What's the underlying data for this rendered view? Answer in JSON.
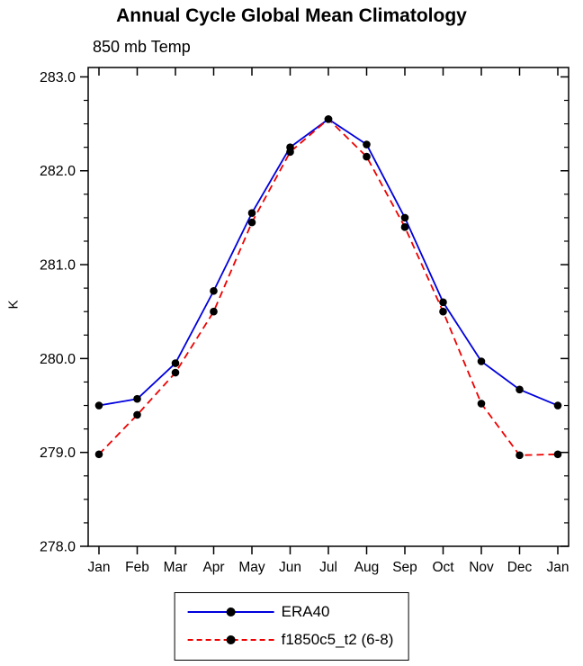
{
  "chart_data": {
    "type": "line",
    "title": "Annual Cycle Global Mean Climatology",
    "subtitle": "850 mb Temp",
    "ylabel": "K",
    "categories": [
      "Jan",
      "Feb",
      "Mar",
      "Apr",
      "May",
      "Jun",
      "Jul",
      "Aug",
      "Sep",
      "Oct",
      "Nov",
      "Dec",
      "Jan"
    ],
    "yticks": [
      278.0,
      279.0,
      280.0,
      281.0,
      282.0,
      283.0
    ],
    "ylim": [
      278.0,
      283.1
    ],
    "grid": false,
    "legend_position": "bottom-center",
    "marker_color": "#000000",
    "series": [
      {
        "name": "ERA40",
        "color": "#0000dd",
        "style": "solid",
        "values": [
          279.5,
          279.57,
          279.95,
          280.72,
          281.55,
          282.25,
          282.55,
          282.28,
          281.5,
          280.6,
          279.97,
          279.67,
          279.5
        ]
      },
      {
        "name": "f1850c5_t2 (6-8)",
        "color": "#ee0000",
        "style": "dashed",
        "values": [
          278.98,
          279.4,
          279.85,
          280.5,
          281.45,
          282.2,
          282.55,
          282.15,
          281.4,
          280.5,
          279.52,
          278.97,
          278.98
        ]
      }
    ]
  }
}
